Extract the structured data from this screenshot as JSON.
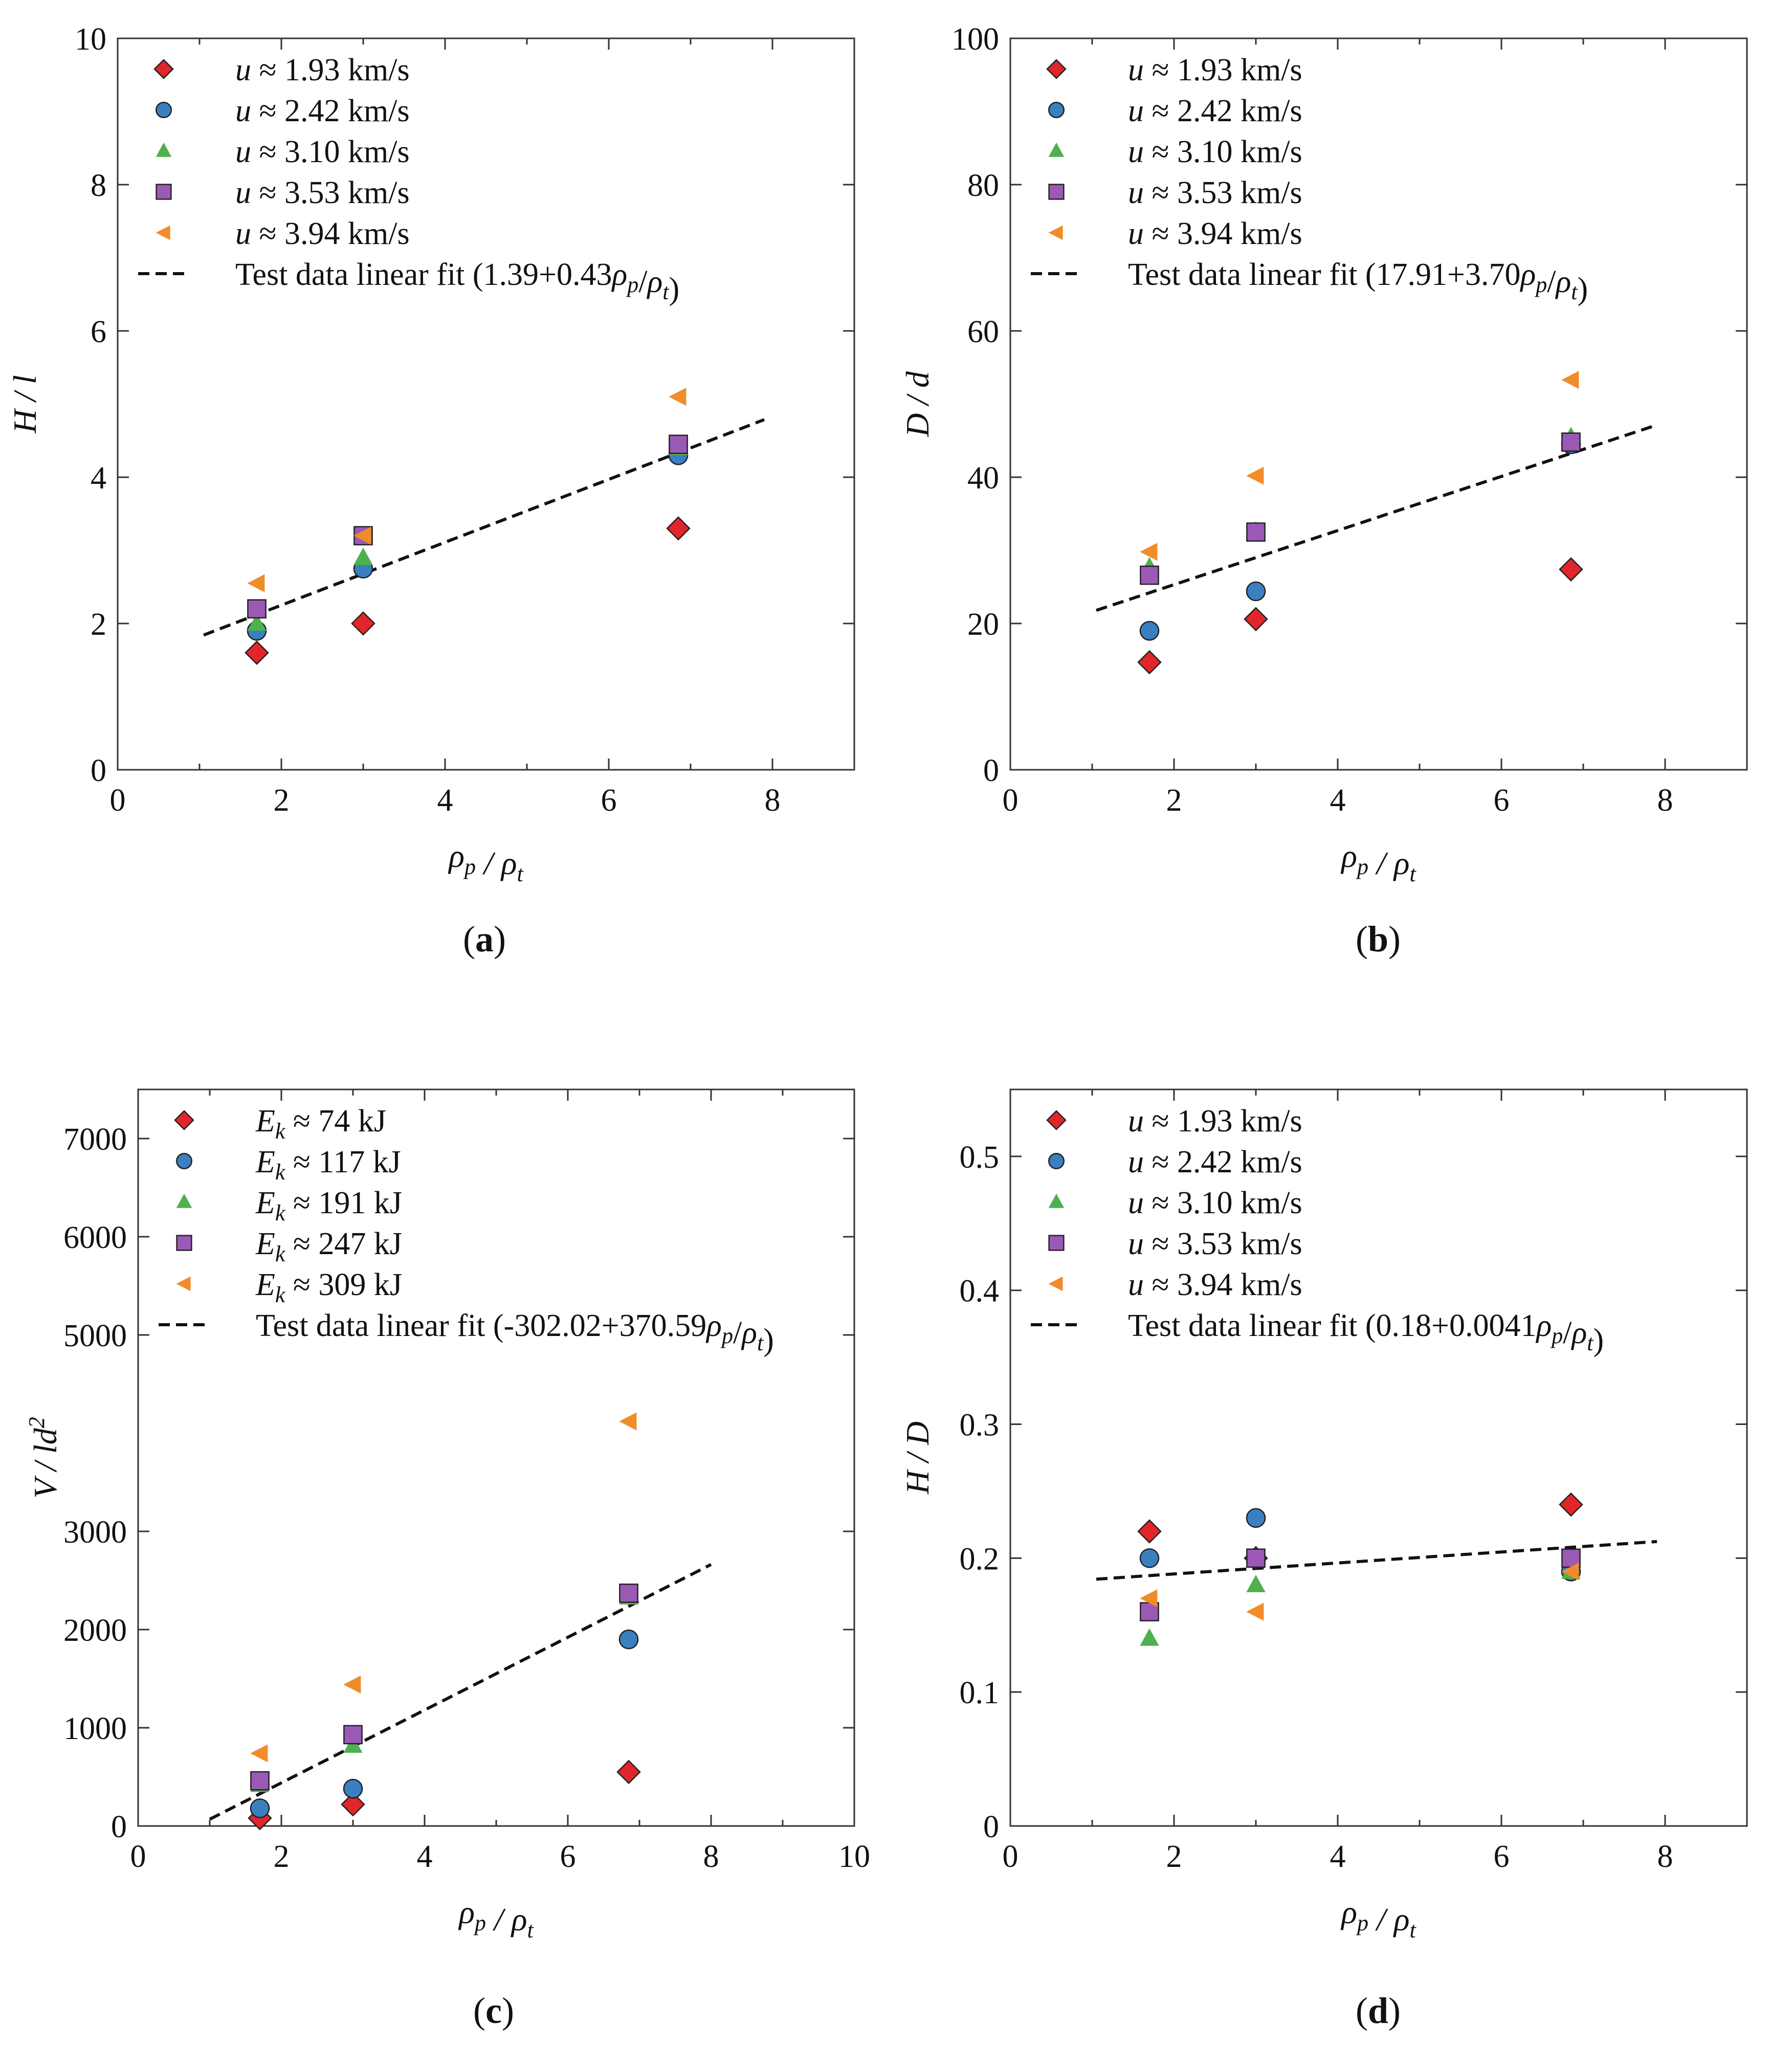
{
  "chart_data": [
    {
      "id": "a",
      "type": "scatter",
      "caption": "a",
      "xlabel": "ρp / ρt",
      "ylabel": "H / l",
      "xlim": [
        0,
        9
      ],
      "ylim": [
        0,
        10
      ],
      "xticks": [
        0,
        2,
        4,
        6,
        8
      ],
      "yticks": [
        0,
        2,
        4,
        6,
        8,
        10
      ],
      "series": [
        {
          "name": "u ≈ 1.93 km/s",
          "marker": "diamond",
          "color": "#e0262b",
          "points": [
            [
              1.7,
              1.6
            ],
            [
              3.0,
              2.0
            ],
            [
              6.85,
              3.3
            ]
          ]
        },
        {
          "name": "u ≈ 2.42 km/s",
          "marker": "circle",
          "color": "#3a7fc0",
          "points": [
            [
              1.7,
              1.9
            ],
            [
              3.0,
              2.75
            ],
            [
              6.85,
              4.3
            ]
          ]
        },
        {
          "name": "u ≈ 3.10 km/s",
          "marker": "triangle-up",
          "color": "#4fb04f",
          "points": [
            [
              1.7,
              2.0
            ],
            [
              3.0,
              2.9
            ],
            [
              6.85,
              4.4
            ]
          ]
        },
        {
          "name": "u ≈ 3.53 km/s",
          "marker": "square",
          "color": "#9b59b6",
          "points": [
            [
              1.7,
              2.2
            ],
            [
              3.0,
              3.2
            ],
            [
              6.85,
              4.45
            ]
          ]
        },
        {
          "name": "u ≈ 3.94 km/s",
          "marker": "triangle-left",
          "color": "#f08c2a",
          "points": [
            [
              1.7,
              2.55
            ],
            [
              3.0,
              3.2
            ],
            [
              6.85,
              5.1
            ]
          ]
        }
      ],
      "fit": {
        "label": "Test data linear fit (1.39+0.43ρp/ρt)",
        "intercept": 1.39,
        "slope": 0.43,
        "x_range": [
          1.05,
          7.9
        ]
      }
    },
    {
      "id": "b",
      "type": "scatter",
      "caption": "b",
      "xlabel": "ρp / ρt",
      "ylabel": "D / d",
      "xlim": [
        0,
        9
      ],
      "ylim": [
        0,
        100
      ],
      "xticks": [
        0,
        2,
        4,
        6,
        8
      ],
      "yticks": [
        0,
        20,
        40,
        60,
        80,
        100
      ],
      "series": [
        {
          "name": "u ≈ 1.93 km/s",
          "marker": "diamond",
          "color": "#e0262b",
          "points": [
            [
              1.7,
              14.7
            ],
            [
              3.0,
              20.6
            ],
            [
              6.85,
              27.4
            ]
          ]
        },
        {
          "name": "u ≈ 2.42 km/s",
          "marker": "circle",
          "color": "#3a7fc0",
          "points": [
            [
              1.7,
              19.0
            ],
            [
              3.0,
              24.4
            ],
            [
              6.85,
              44.5
            ]
          ]
        },
        {
          "name": "u ≈ 3.10 km/s",
          "marker": "triangle-up",
          "color": "#4fb04f",
          "points": [
            [
              1.7,
              27.7
            ],
            [
              3.0,
              32.6
            ],
            [
              6.85,
              45.5
            ]
          ]
        },
        {
          "name": "u ≈ 3.53 km/s",
          "marker": "square",
          "color": "#9b59b6",
          "points": [
            [
              1.7,
              26.6
            ],
            [
              3.0,
              32.5
            ],
            [
              6.85,
              44.8
            ]
          ]
        },
        {
          "name": "u ≈ 3.94 km/s",
          "marker": "triangle-left",
          "color": "#f08c2a",
          "points": [
            [
              1.7,
              29.8
            ],
            [
              3.0,
              40.2
            ],
            [
              6.85,
              53.3
            ]
          ]
        }
      ],
      "fit": {
        "label": "Test data linear fit (17.91+3.70ρp/ρt)",
        "intercept": 17.91,
        "slope": 3.7,
        "x_range": [
          1.05,
          7.9
        ]
      }
    },
    {
      "id": "c",
      "type": "scatter",
      "caption": "c",
      "xlabel": "ρp / ρt",
      "ylabel": "V / ld²",
      "xlim": [
        0,
        10
      ],
      "ylim": [
        0,
        7500
      ],
      "xticks": [
        0,
        2,
        4,
        6,
        8,
        10
      ],
      "yticks": [
        0,
        1000,
        2000,
        3000,
        5000,
        6000,
        7000
      ],
      "series": [
        {
          "name": "Ek ≈ 74 kJ",
          "marker": "diamond",
          "color": "#e0262b",
          "points": [
            [
              1.7,
              80
            ],
            [
              3.0,
              220
            ],
            [
              6.85,
              550
            ]
          ]
        },
        {
          "name": "Ek ≈ 117 kJ",
          "marker": "circle",
          "color": "#3a7fc0",
          "points": [
            [
              1.7,
              180
            ],
            [
              3.0,
              380
            ],
            [
              6.85,
              1900
            ]
          ]
        },
        {
          "name": "Ek ≈ 191 kJ",
          "marker": "triangle-up",
          "color": "#4fb04f",
          "points": [
            [
              1.7,
              420
            ],
            [
              3.0,
              820
            ],
            [
              6.85,
              2330
            ]
          ]
        },
        {
          "name": "Ek ≈ 247 kJ",
          "marker": "square",
          "color": "#9b59b6",
          "points": [
            [
              1.7,
              460
            ],
            [
              3.0,
              930
            ],
            [
              6.85,
              2370
            ]
          ]
        },
        {
          "name": "Ek ≈ 309 kJ",
          "marker": "triangle-left",
          "color": "#f08c2a",
          "points": [
            [
              1.7,
              740
            ],
            [
              3.0,
              1440
            ],
            [
              6.85,
              4120
            ]
          ]
        }
      ],
      "fit": {
        "label": "Test data linear fit (-302.02+370.59ρp/ρt)",
        "intercept": -302.02,
        "slope": 370.59,
        "x_range": [
          1.0,
          8.0
        ]
      }
    },
    {
      "id": "d",
      "type": "scatter",
      "caption": "d",
      "xlabel": "ρp / ρt",
      "ylabel": "H / D",
      "xlim": [
        0,
        9
      ],
      "ylim": [
        0,
        0.55
      ],
      "xticks": [
        0,
        2,
        4,
        6,
        8
      ],
      "yticks": [
        0,
        0.1,
        0.2,
        0.3,
        0.4,
        0.5
      ],
      "series": [
        {
          "name": "u ≈ 1.93 km/s",
          "marker": "diamond",
          "color": "#e0262b",
          "points": [
            [
              1.7,
              0.22
            ],
            [
              3.0,
              0.2
            ],
            [
              6.85,
              0.24
            ]
          ]
        },
        {
          "name": "u ≈ 2.42 km/s",
          "marker": "circle",
          "color": "#3a7fc0",
          "points": [
            [
              1.7,
              0.2
            ],
            [
              3.0,
              0.23
            ],
            [
              6.85,
              0.19
            ]
          ]
        },
        {
          "name": "u ≈ 3.10 km/s",
          "marker": "triangle-up",
          "color": "#4fb04f",
          "points": [
            [
              1.7,
              0.14
            ],
            [
              3.0,
              0.18
            ],
            [
              6.85,
              0.19
            ]
          ]
        },
        {
          "name": "u ≈ 3.53 km/s",
          "marker": "square",
          "color": "#9b59b6",
          "points": [
            [
              1.7,
              0.16
            ],
            [
              3.0,
              0.2
            ],
            [
              6.85,
              0.2
            ]
          ]
        },
        {
          "name": "u ≈ 3.94 km/s",
          "marker": "triangle-left",
          "color": "#f08c2a",
          "points": [
            [
              1.7,
              0.17
            ],
            [
              3.0,
              0.16
            ],
            [
              6.85,
              0.19
            ]
          ]
        }
      ],
      "fit": {
        "label": "Test data linear fit (0.18+0.0041ρp/ρt)",
        "intercept": 0.18,
        "slope": 0.0041,
        "x_range": [
          1.05,
          7.9
        ]
      }
    }
  ]
}
